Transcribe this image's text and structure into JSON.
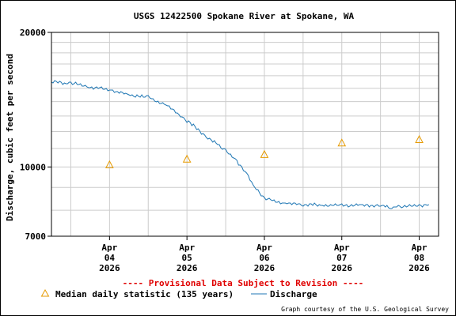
{
  "chart_data": {
    "type": "line",
    "title": "USGS 12422500 Spokane River at Spokane, WA",
    "ylabel": "Discharge, cubic feet per second",
    "xlabel": "",
    "y_scale": "log",
    "ylim": [
      7000,
      20000
    ],
    "y_ticks": [
      {
        "value": 7000,
        "label": "7000"
      },
      {
        "value": 10000,
        "label": "10000"
      },
      {
        "value": 20000,
        "label": "20000"
      }
    ],
    "xlim": [
      "2026-04-03T18:00",
      "2026-04-08T18:00"
    ],
    "x_ticks": [
      {
        "value": "2026-04-04T12:00",
        "lines": [
          "Apr",
          "04",
          "2026"
        ]
      },
      {
        "value": "2026-04-05T12:00",
        "lines": [
          "Apr",
          "05",
          "2026"
        ]
      },
      {
        "value": "2026-04-06T12:00",
        "lines": [
          "Apr",
          "06",
          "2026"
        ]
      },
      {
        "value": "2026-04-07T12:00",
        "lines": [
          "Apr",
          "07",
          "2026"
        ]
      },
      {
        "value": "2026-04-08T12:00",
        "lines": [
          "Apr",
          "08",
          "2026"
        ]
      }
    ],
    "grid": true,
    "series": [
      {
        "name": "Discharge",
        "color": "#1f77b4",
        "x": [
          "2026-04-03T18:00",
          "2026-04-04T00:00",
          "2026-04-04T06:00",
          "2026-04-04T12:00",
          "2026-04-04T18:00",
          "2026-04-05T00:00",
          "2026-04-05T06:00",
          "2026-04-05T12:00",
          "2026-04-05T18:00",
          "2026-04-06T00:00",
          "2026-04-06T03:00",
          "2026-04-06T06:00",
          "2026-04-06T09:00",
          "2026-04-06T12:00",
          "2026-04-06T18:00",
          "2026-04-07T00:00",
          "2026-04-07T06:00",
          "2026-04-07T12:00",
          "2026-04-07T18:00",
          "2026-04-08T00:00",
          "2026-04-08T03:00",
          "2026-04-08T06:00",
          "2026-04-08T12:00",
          "2026-04-08T15:00"
        ],
        "y": [
          15500,
          15400,
          15100,
          14900,
          14500,
          14300,
          13700,
          12700,
          11700,
          10900,
          10400,
          9800,
          9000,
          8500,
          8300,
          8250,
          8200,
          8200,
          8200,
          8200,
          8100,
          8150,
          8200,
          8250
        ]
      },
      {
        "name": "Median daily statistic (135 years)",
        "color": "#e69a00",
        "marker": "triangle",
        "x": [
          "2026-04-04T12:00",
          "2026-04-05T12:00",
          "2026-04-06T12:00",
          "2026-04-07T12:00",
          "2026-04-08T12:00"
        ],
        "y": [
          10100,
          10400,
          10650,
          11300,
          11500
        ]
      }
    ],
    "legend": "bottom",
    "legend_entries": [
      {
        "label": "Median daily statistic (135 years)",
        "symbol": "triangle",
        "color": "#e69a00"
      },
      {
        "label": "Discharge",
        "symbol": "line",
        "color": "#1f77b4"
      }
    ],
    "annotations": {
      "provisional": "---- Provisional Data Subject to Revision ----",
      "credit": "Graph courtesy of the U.S. Geological Survey"
    }
  }
}
